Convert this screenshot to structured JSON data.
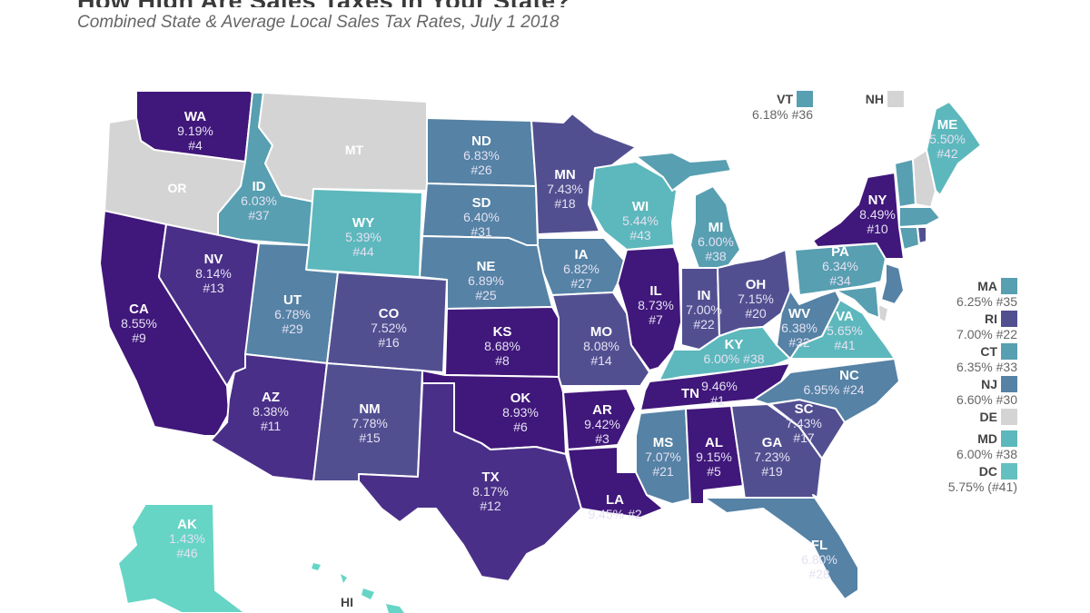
{
  "header": {
    "title": "How High Are Sales Taxes in Your State?",
    "subtitle": "Combined State & Average Local Sales Tax Rates, July 1 2018"
  },
  "colors": {
    "none": "#d4d4d4",
    "low": "#66d5c5",
    "teal": "#5cb8bc",
    "teal_dark": "#579fb1",
    "steel": "#5582a5",
    "slate": "#524f91",
    "purple": "#4a2f88",
    "deep_purple": "#40177a"
  },
  "states": {
    "WA": {
      "abbr": "WA",
      "rate": "9.19%",
      "rank": "#4"
    },
    "OR": {
      "abbr": "OR"
    },
    "MT": {
      "abbr": "MT"
    },
    "ID": {
      "abbr": "ID",
      "rate": "6.03%",
      "rank": "#37"
    },
    "WY": {
      "abbr": "WY",
      "rate": "5.39%",
      "rank": "#44"
    },
    "CA": {
      "abbr": "CA",
      "rate": "8.55%",
      "rank": "#9"
    },
    "NV": {
      "abbr": "NV",
      "rate": "8.14%",
      "rank": "#13"
    },
    "UT": {
      "abbr": "UT",
      "rate": "6.78%",
      "rank": "#29"
    },
    "CO": {
      "abbr": "CO",
      "rate": "7.52%",
      "rank": "#16"
    },
    "AZ": {
      "abbr": "AZ",
      "rate": "8.38%",
      "rank": "#11"
    },
    "NM": {
      "abbr": "NM",
      "rate": "7.78%",
      "rank": "#15"
    },
    "ND": {
      "abbr": "ND",
      "rate": "6.83%",
      "rank": "#26"
    },
    "SD": {
      "abbr": "SD",
      "rate": "6.40%",
      "rank": "#31"
    },
    "NE": {
      "abbr": "NE",
      "rate": "6.89%",
      "rank": "#25"
    },
    "KS": {
      "abbr": "KS",
      "rate": "8.68%",
      "rank": "#8"
    },
    "OK": {
      "abbr": "OK",
      "rate": "8.93%",
      "rank": "#6"
    },
    "TX": {
      "abbr": "TX",
      "rate": "8.17%",
      "rank": "#12"
    },
    "MN": {
      "abbr": "MN",
      "rate": "7.43%",
      "rank": "#18"
    },
    "IA": {
      "abbr": "IA",
      "rate": "6.82%",
      "rank": "#27"
    },
    "MO": {
      "abbr": "MO",
      "rate": "8.08%",
      "rank": "#14"
    },
    "AR": {
      "abbr": "AR",
      "rate": "9.42%",
      "rank": "#3"
    },
    "LA": {
      "abbr": "LA",
      "rate": "9.45%",
      "rank": "#2"
    },
    "WI": {
      "abbr": "WI",
      "rate": "5.44%",
      "rank": "#43"
    },
    "IL": {
      "abbr": "IL",
      "rate": "8.73%",
      "rank": "#7"
    },
    "MI": {
      "abbr": "MI",
      "rate": "6.00%",
      "rank": "#38"
    },
    "IN": {
      "abbr": "IN",
      "rate": "7.00%",
      "rank": "#22"
    },
    "OH": {
      "abbr": "OH",
      "rate": "7.15%",
      "rank": "#20"
    },
    "KY": {
      "abbr": "KY",
      "rate": "6.00%",
      "rank": "#38"
    },
    "TN": {
      "abbr": "TN",
      "rate": "9.46%",
      "rank": "#1"
    },
    "MS": {
      "abbr": "MS",
      "rate": "7.07%",
      "rank": "#21"
    },
    "AL": {
      "abbr": "AL",
      "rate": "9.15%",
      "rank": "#5"
    },
    "GA": {
      "abbr": "GA",
      "rate": "7.23%",
      "rank": "#19"
    },
    "FL": {
      "abbr": "FL",
      "rate": "6.80%",
      "rank": "#28"
    },
    "SC": {
      "abbr": "SC",
      "rate": "7.43%",
      "rank": "#17"
    },
    "NC": {
      "abbr": "NC",
      "rate": "6.95%",
      "rank": "#24"
    },
    "VA": {
      "abbr": "VA",
      "rate": "5.65%",
      "rank": "#41"
    },
    "WV": {
      "abbr": "WV",
      "rate": "6.38%",
      "rank": "#32"
    },
    "PA": {
      "abbr": "PA",
      "rate": "6.34%",
      "rank": "#34"
    },
    "NY": {
      "abbr": "NY",
      "rate": "8.49%",
      "rank": "#10"
    },
    "ME": {
      "abbr": "ME",
      "rate": "5.50%",
      "rank": "#42"
    },
    "AK": {
      "abbr": "AK",
      "rate": "1.43%",
      "rank": "#46"
    },
    "HI": {
      "abbr": "HI"
    }
  },
  "callouts": {
    "VT": {
      "abbr": "VT",
      "text": "6.18% #36"
    },
    "NH": {
      "abbr": "NH"
    },
    "MA": {
      "abbr": "MA",
      "text": "6.25% #35"
    },
    "RI": {
      "abbr": "RI",
      "text": "7.00% #22"
    },
    "CT": {
      "abbr": "CT",
      "text": "6.35% #33"
    },
    "NJ": {
      "abbr": "NJ",
      "text": "6.60% #30"
    },
    "DE": {
      "abbr": "DE"
    },
    "MD": {
      "abbr": "MD",
      "text": "6.00% #38"
    },
    "DC": {
      "abbr": "DC",
      "text": "5.75% (#41)"
    }
  }
}
